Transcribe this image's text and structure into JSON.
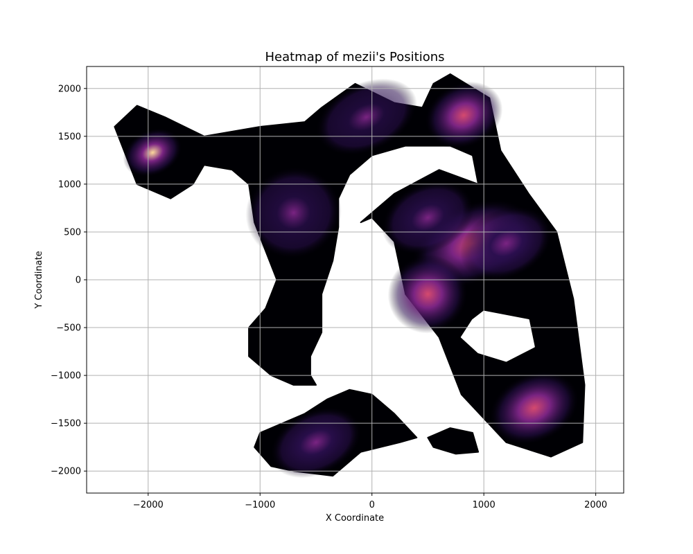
{
  "chart_data": {
    "type": "heatmap",
    "title": "Heatmap of mezii's Positions",
    "xlabel": "X Coordinate",
    "ylabel": "Y Coordinate",
    "xlim": [
      -2550,
      2250
    ],
    "ylim": [
      -2230,
      2230
    ],
    "xticks": [
      -2000,
      -1000,
      0,
      1000,
      2000
    ],
    "yticks": [
      -2000,
      -1500,
      -1000,
      -500,
      0,
      500,
      1000,
      1500,
      2000
    ],
    "xtick_labels": [
      "−2000",
      "−1000",
      "0",
      "1000",
      "2000"
    ],
    "ytick_labels": [
      "−2000",
      "−1500",
      "−1000",
      "−500",
      "0",
      "500",
      "1000",
      "1500",
      "2000"
    ],
    "grid": true,
    "colormap": "magma",
    "colors": {
      "background": "#000004",
      "low": "#2b0f4f",
      "mid": "#7a2482",
      "high": "#d44a6e",
      "peak": "#fcd99c",
      "grid": "#b0b0b0"
    },
    "hotspots": [
      {
        "x": -1960,
        "y": 1330,
        "sx": 115,
        "sy": 100,
        "intensity": 1.0
      },
      {
        "x": 1450,
        "y": -1340,
        "sx": 175,
        "sy": 150,
        "intensity": 0.6
      },
      {
        "x": 820,
        "y": 1720,
        "sx": 150,
        "sy": 140,
        "intensity": 0.45
      },
      {
        "x": 900,
        "y": 380,
        "sx": 240,
        "sy": 170,
        "intensity": 0.5
      },
      {
        "x": 1200,
        "y": 380,
        "sx": 180,
        "sy": 150,
        "intensity": 0.38
      },
      {
        "x": 500,
        "y": -150,
        "sx": 150,
        "sy": 170,
        "intensity": 0.42
      },
      {
        "x": -500,
        "y": -1700,
        "sx": 180,
        "sy": 140,
        "intensity": 0.32
      },
      {
        "x": -700,
        "y": 700,
        "sx": 180,
        "sy": 200,
        "intensity": 0.15
      },
      {
        "x": -50,
        "y": 1700,
        "sx": 200,
        "sy": 150,
        "intensity": 0.12
      },
      {
        "x": 500,
        "y": 650,
        "sx": 180,
        "sy": 150,
        "intensity": 0.22
      }
    ],
    "density_regions": [
      {
        "name": "main-region",
        "points": [
          [
            -2300,
            1600
          ],
          [
            -2100,
            1820
          ],
          [
            -1850,
            1700
          ],
          [
            -1500,
            1500
          ],
          [
            -1000,
            1600
          ],
          [
            -600,
            1650
          ],
          [
            -450,
            1800
          ],
          [
            -150,
            2050
          ],
          [
            200,
            1850
          ],
          [
            450,
            1800
          ],
          [
            550,
            2050
          ],
          [
            700,
            2150
          ],
          [
            1050,
            1900
          ],
          [
            1150,
            1350
          ],
          [
            1400,
            900
          ],
          [
            1650,
            500
          ],
          [
            1800,
            -200
          ],
          [
            1900,
            -1100
          ],
          [
            1880,
            -1700
          ],
          [
            1600,
            -1850
          ],
          [
            1200,
            -1700
          ],
          [
            800,
            -1200
          ],
          [
            600,
            -600
          ],
          [
            300,
            -150
          ],
          [
            200,
            400
          ],
          [
            0,
            650
          ],
          [
            -100,
            600
          ],
          [
            200,
            900
          ],
          [
            600,
            1150
          ],
          [
            950,
            1000
          ],
          [
            900,
            1300
          ],
          [
            700,
            1400
          ],
          [
            300,
            1400
          ],
          [
            0,
            1300
          ],
          [
            -200,
            1100
          ],
          [
            -300,
            850
          ],
          [
            -300,
            550
          ],
          [
            -350,
            200
          ],
          [
            -450,
            -150
          ],
          [
            -450,
            -550
          ],
          [
            -550,
            -800
          ],
          [
            -550,
            -1000
          ],
          [
            -500,
            -1100
          ],
          [
            -700,
            -1100
          ],
          [
            -900,
            -1000
          ],
          [
            -1100,
            -800
          ],
          [
            -1100,
            -500
          ],
          [
            -950,
            -300
          ],
          [
            -850,
            0
          ],
          [
            -950,
            300
          ],
          [
            -1050,
            600
          ],
          [
            -1100,
            1000
          ],
          [
            -1250,
            1150
          ],
          [
            -1500,
            1200
          ],
          [
            -1600,
            1000
          ],
          [
            -1800,
            850
          ],
          [
            -2100,
            1000
          ]
        ]
      },
      {
        "name": "hole",
        "points": [
          [
            1000,
            -330
          ],
          [
            1400,
            -420
          ],
          [
            1450,
            -700
          ],
          [
            1200,
            -850
          ],
          [
            950,
            -760
          ],
          [
            800,
            -600
          ],
          [
            900,
            -420
          ]
        ]
      },
      {
        "name": "bottom-left-region",
        "points": [
          [
            -1000,
            -1600
          ],
          [
            -800,
            -1500
          ],
          [
            -600,
            -1400
          ],
          [
            -400,
            -1250
          ],
          [
            -200,
            -1150
          ],
          [
            0,
            -1200
          ],
          [
            200,
            -1400
          ],
          [
            400,
            -1650
          ],
          [
            250,
            -1700
          ],
          [
            -100,
            -1800
          ],
          [
            -350,
            -2050
          ],
          [
            -700,
            -2000
          ],
          [
            -900,
            -1950
          ],
          [
            -1050,
            -1750
          ]
        ]
      },
      {
        "name": "small-bottom-region",
        "points": [
          [
            500,
            -1650
          ],
          [
            700,
            -1550
          ],
          [
            900,
            -1600
          ],
          [
            950,
            -1800
          ],
          [
            750,
            -1820
          ],
          [
            550,
            -1750
          ]
        ]
      }
    ]
  }
}
